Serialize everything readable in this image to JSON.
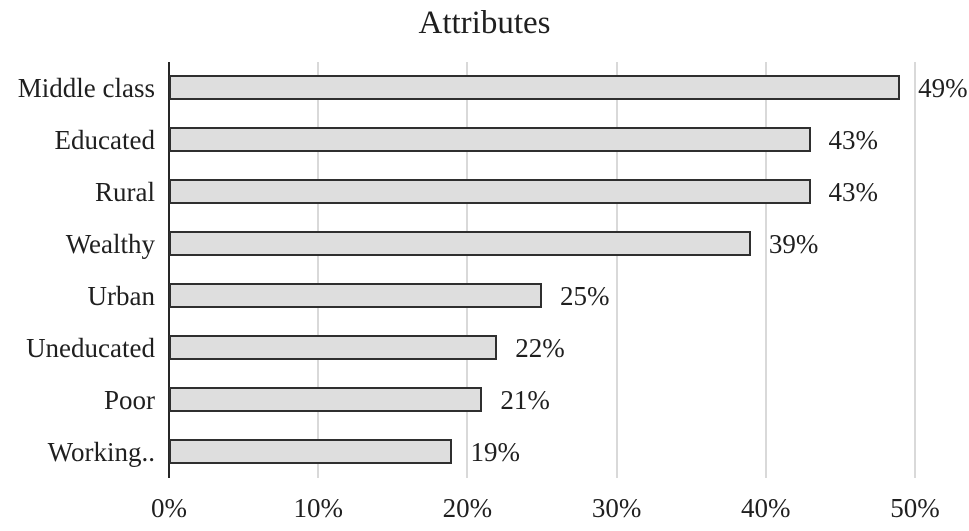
{
  "chart_data": {
    "type": "bar",
    "orientation": "horizontal",
    "title": "Attributes",
    "categories": [
      "Middle class",
      "Educated",
      "Rural",
      "Wealthy",
      "Urban",
      "Uneducated",
      "Poor",
      "Working.."
    ],
    "values": [
      49,
      43,
      43,
      39,
      25,
      22,
      21,
      19
    ],
    "data_labels": [
      "49%",
      "43%",
      "43%",
      "39%",
      "25%",
      "22%",
      "21%",
      "19%"
    ],
    "x_tick_labels": [
      "0%",
      "10%",
      "20%",
      "30%",
      "40%",
      "50%"
    ],
    "x_tick_values": [
      0,
      10,
      20,
      30,
      40,
      50
    ],
    "xlim": [
      0,
      50
    ],
    "xlabel": "",
    "ylabel": "",
    "grid": "vertical-only",
    "legend": "none",
    "style": {
      "bar_fill": "#dedede",
      "bar_border": "#2f2f2f",
      "gridline_color": "#d9d9d9",
      "axis_line_color": "#262626",
      "text_color": "#1f1f1f",
      "background": "#ffffff"
    }
  }
}
